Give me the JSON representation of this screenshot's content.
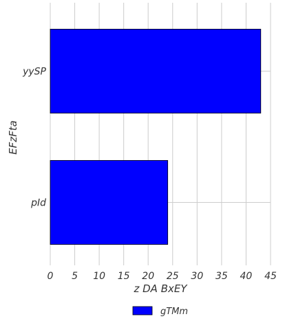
{
  "chart_data": {
    "type": "bar",
    "orientation": "horizontal",
    "categories": [
      "yySP",
      "pId"
    ],
    "series": [
      {
        "name": "gTMm",
        "values": [
          43,
          24
        ]
      }
    ],
    "xlabel": "z  DA  BxEY",
    "ylabel": "EFzFta",
    "xlim": [
      0,
      45
    ],
    "xticks": [
      0,
      5,
      10,
      15,
      20,
      25,
      30,
      35,
      40,
      45
    ],
    "grid": true,
    "legend": "bottom-center",
    "colors": {
      "bar": "#0000ff",
      "bar_edge": "#000000",
      "grid": "#cccccc"
    }
  }
}
